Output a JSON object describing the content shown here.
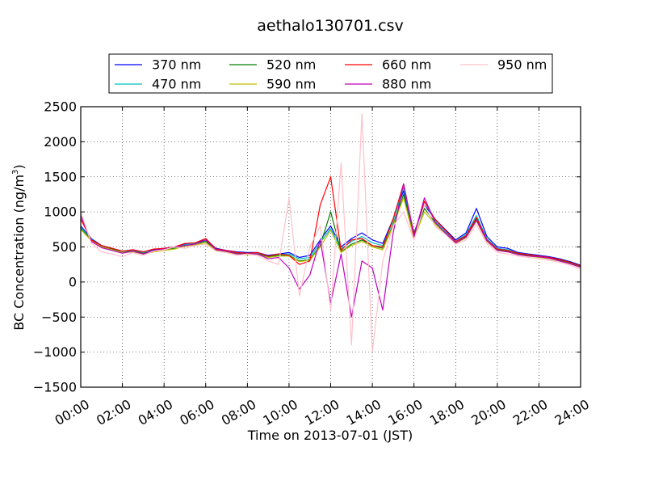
{
  "chart_data": {
    "type": "line",
    "title": "aethalo130701.csv",
    "xlabel": "Time on 2013-07-01 (JST)",
    "ylabel": "BC Concentration (ng/m3)",
    "ylabel_parts": [
      "BC Concentration (ng/m",
      "3",
      ")"
    ],
    "xlim": [
      "00:00",
      "24:00"
    ],
    "ylim": [
      -1500,
      2500
    ],
    "x_ticks": [
      "00:00",
      "02:00",
      "04:00",
      "06:00",
      "08:00",
      "10:00",
      "12:00",
      "14:00",
      "16:00",
      "18:00",
      "20:00",
      "22:00",
      "24:00"
    ],
    "y_ticks": [
      "2500",
      "2000",
      "1500",
      "1000",
      "500",
      "0",
      "−500",
      "−1000",
      "−1500"
    ],
    "grid": true,
    "legend_location": "top-center",
    "x": [
      "00:00",
      "00:30",
      "01:00",
      "01:30",
      "02:00",
      "02:30",
      "03:00",
      "03:30",
      "04:00",
      "04:30",
      "05:00",
      "05:30",
      "06:00",
      "06:30",
      "07:00",
      "07:30",
      "08:00",
      "08:30",
      "09:00",
      "09:30",
      "10:00",
      "10:30",
      "11:00",
      "11:30",
      "12:00",
      "12:30",
      "13:00",
      "13:30",
      "14:00",
      "14:30",
      "15:00",
      "15:30",
      "16:00",
      "16:30",
      "17:00",
      "17:30",
      "18:00",
      "18:30",
      "19:00",
      "19:30",
      "20:00",
      "20:30",
      "21:00",
      "21:30",
      "22:00",
      "22:30",
      "23:00",
      "23:30",
      "24:00"
    ],
    "series": [
      {
        "name": "370 nm",
        "color": "#0000ff",
        "values": [
          800,
          620,
          520,
          480,
          440,
          460,
          430,
          460,
          480,
          500,
          540,
          560,
          600,
          480,
          450,
          430,
          420,
          420,
          380,
          400,
          420,
          350,
          380,
          600,
          800,
          500,
          620,
          700,
          600,
          550,
          900,
          1300,
          700,
          1100,
          900,
          750,
          600,
          700,
          1050,
          650,
          500,
          480,
          420,
          400,
          380,
          360,
          330,
          290,
          240
        ]
      },
      {
        "name": "470 nm",
        "color": "#00bfbf",
        "values": [
          780,
          610,
          510,
          470,
          430,
          450,
          420,
          450,
          470,
          490,
          530,
          550,
          590,
          470,
          440,
          420,
          410,
          410,
          370,
          390,
          400,
          330,
          350,
          560,
          760,
          470,
          580,
          650,
          560,
          520,
          870,
          1350,
          680,
          1150,
          880,
          720,
          580,
          680,
          950,
          620,
          480,
          460,
          410,
          390,
          370,
          350,
          320,
          280,
          230
        ]
      },
      {
        "name": "520 nm",
        "color": "#008000",
        "values": [
          760,
          600,
          500,
          470,
          420,
          440,
          410,
          440,
          460,
          480,
          520,
          540,
          580,
          460,
          430,
          410,
          400,
          400,
          360,
          380,
          380,
          300,
          320,
          520,
          1000,
          430,
          540,
          600,
          520,
          480,
          820,
          1250,
          640,
          1050,
          850,
          700,
          560,
          650,
          900,
          600,
          460,
          440,
          400,
          380,
          360,
          340,
          310,
          270,
          220
        ]
      },
      {
        "name": "590 nm",
        "color": "#bfbf00",
        "values": [
          750,
          590,
          500,
          460,
          420,
          430,
          400,
          430,
          450,
          470,
          510,
          530,
          560,
          450,
          420,
          400,
          390,
          390,
          350,
          370,
          370,
          290,
          310,
          500,
          740,
          420,
          520,
          580,
          500,
          460,
          800,
          1200,
          620,
          1000,
          830,
          680,
          550,
          630,
          870,
          580,
          450,
          430,
          390,
          370,
          350,
          330,
          300,
          260,
          210
        ]
      },
      {
        "name": "660 nm",
        "color": "#ff0000",
        "values": [
          900,
          600,
          520,
          480,
          440,
          460,
          430,
          470,
          480,
          500,
          550,
          560,
          620,
          470,
          450,
          420,
          410,
          420,
          370,
          400,
          380,
          250,
          300,
          1100,
          1500,
          450,
          600,
          620,
          520,
          500,
          900,
          1400,
          680,
          1150,
          900,
          740,
          580,
          660,
          920,
          600,
          470,
          450,
          410,
          390,
          370,
          350,
          320,
          280,
          230
        ]
      },
      {
        "name": "880 nm",
        "color": "#bf00bf",
        "values": [
          950,
          580,
          490,
          450,
          410,
          440,
          400,
          450,
          470,
          500,
          520,
          540,
          600,
          460,
          440,
          400,
          400,
          400,
          330,
          350,
          200,
          -100,
          100,
          600,
          -300,
          400,
          -500,
          300,
          200,
          -400,
          700,
          1400,
          650,
          1200,
          860,
          700,
          560,
          640,
          880,
          590,
          450,
          430,
          390,
          370,
          360,
          340,
          300,
          260,
          210
        ]
      },
      {
        "name": "950 nm",
        "color": "#ffc0cb",
        "values": [
          1000,
          560,
          430,
          400,
          360,
          420,
          380,
          440,
          460,
          500,
          480,
          520,
          540,
          440,
          420,
          380,
          400,
          380,
          300,
          250,
          1200,
          -200,
          500,
          800,
          -400,
          1700,
          -900,
          2400,
          -1000,
          300,
          800,
          1000,
          600,
          1100,
          800,
          680,
          540,
          600,
          820,
          550,
          420,
          400,
          370,
          350,
          330,
          310,
          280,
          240,
          180
        ]
      }
    ]
  }
}
